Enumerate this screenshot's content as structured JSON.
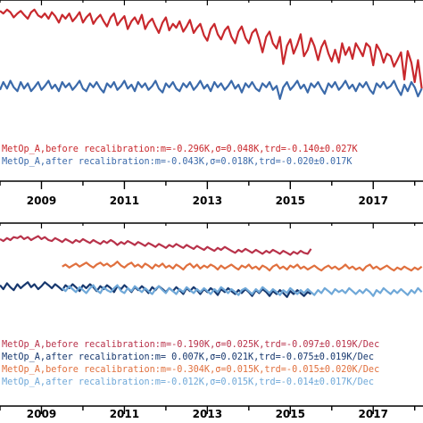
{
  "chart_data": [
    {
      "type": "line",
      "title": "",
      "xlabel": "",
      "ylabel": "",
      "xlim": [
        2008.0,
        2018.2
      ],
      "ylim": [
        -1.0,
        1.0
      ],
      "x_ticks": [
        "2009",
        "2011",
        "2013",
        "2015",
        "2017"
      ],
      "x": [
        2008.0,
        2008.08,
        2008.17,
        2008.25,
        2008.33,
        2008.42,
        2008.5,
        2008.58,
        2008.67,
        2008.75,
        2008.83,
        2008.92,
        2009.0,
        2009.08,
        2009.17,
        2009.25,
        2009.33,
        2009.42,
        2009.5,
        2009.58,
        2009.67,
        2009.75,
        2009.83,
        2009.92,
        2010.0,
        2010.08,
        2010.17,
        2010.25,
        2010.33,
        2010.42,
        2010.5,
        2010.58,
        2010.67,
        2010.75,
        2010.83,
        2010.92,
        2011.0,
        2011.08,
        2011.17,
        2011.25,
        2011.33,
        2011.42,
        2011.5,
        2011.58,
        2011.67,
        2011.75,
        2011.83,
        2011.92,
        2012.0,
        2012.08,
        2012.17,
        2012.25,
        2012.33,
        2012.42,
        2012.5,
        2012.58,
        2012.67,
        2012.75,
        2012.83,
        2012.92,
        2013.0,
        2013.08,
        2013.17,
        2013.25,
        2013.33,
        2013.42,
        2013.5,
        2013.58,
        2013.67,
        2013.75,
        2013.83,
        2013.92,
        2014.0,
        2014.08,
        2014.17,
        2014.25,
        2014.33,
        2014.42,
        2014.5,
        2014.58,
        2014.67,
        2014.75,
        2014.83,
        2014.92,
        2015.0,
        2015.08,
        2015.17,
        2015.25,
        2015.33,
        2015.42,
        2015.5,
        2015.58,
        2015.67,
        2015.75,
        2015.83,
        2015.92,
        2016.0,
        2016.08,
        2016.17,
        2016.25,
        2016.33,
        2016.42,
        2016.5,
        2016.58,
        2016.67,
        2016.75,
        2016.83,
        2016.92,
        2017.0,
        2017.08,
        2017.17,
        2017.25,
        2017.33,
        2017.42,
        2017.5,
        2017.58,
        2017.67,
        2017.75,
        2017.83,
        2017.92,
        2018.0,
        2018.08,
        2018.17
      ],
      "series": [
        {
          "name": "MetOp_A,before recalibration:m=-0.296K,σ=0.048K,trd=-0.140±0.027K",
          "color": "#c8282d",
          "values": [
            0.9,
            0.86,
            0.92,
            0.88,
            0.8,
            0.86,
            0.9,
            0.84,
            0.78,
            0.88,
            0.92,
            0.83,
            0.8,
            0.86,
            0.78,
            0.88,
            0.82,
            0.72,
            0.84,
            0.78,
            0.86,
            0.74,
            0.8,
            0.88,
            0.72,
            0.8,
            0.86,
            0.7,
            0.78,
            0.84,
            0.74,
            0.66,
            0.8,
            0.86,
            0.68,
            0.76,
            0.82,
            0.62,
            0.74,
            0.8,
            0.7,
            0.84,
            0.62,
            0.72,
            0.78,
            0.66,
            0.56,
            0.72,
            0.8,
            0.6,
            0.7,
            0.64,
            0.74,
            0.58,
            0.66,
            0.76,
            0.56,
            0.64,
            0.7,
            0.52,
            0.44,
            0.62,
            0.7,
            0.54,
            0.46,
            0.6,
            0.66,
            0.5,
            0.4,
            0.58,
            0.66,
            0.48,
            0.4,
            0.56,
            0.62,
            0.46,
            0.26,
            0.5,
            0.58,
            0.4,
            0.32,
            0.5,
            0.08,
            0.36,
            0.46,
            0.24,
            0.38,
            0.54,
            0.2,
            0.3,
            0.48,
            0.36,
            0.14,
            0.34,
            0.44,
            0.24,
            0.12,
            0.3,
            0.1,
            0.4,
            0.22,
            0.34,
            0.16,
            0.4,
            0.3,
            0.2,
            0.4,
            0.34,
            0.06,
            0.38,
            0.28,
            0.1,
            0.24,
            0.2,
            0.04,
            0.14,
            0.26,
            -0.16,
            0.28,
            0.1,
            -0.2,
            0.14,
            -0.3
          ]
        },
        {
          "name": "MetOp_A,after  recalibration:m=-0.043K,σ=0.018K,trd=-0.020±0.017K",
          "color": "#3b6aaa",
          "values": [
            -0.32,
            -0.2,
            -0.3,
            -0.18,
            -0.28,
            -0.34,
            -0.2,
            -0.3,
            -0.22,
            -0.34,
            -0.28,
            -0.2,
            -0.32,
            -0.26,
            -0.18,
            -0.3,
            -0.24,
            -0.34,
            -0.2,
            -0.28,
            -0.22,
            -0.32,
            -0.26,
            -0.18,
            -0.3,
            -0.34,
            -0.22,
            -0.28,
            -0.2,
            -0.3,
            -0.36,
            -0.22,
            -0.28,
            -0.2,
            -0.32,
            -0.26,
            -0.18,
            -0.3,
            -0.24,
            -0.34,
            -0.2,
            -0.28,
            -0.22,
            -0.32,
            -0.26,
            -0.18,
            -0.3,
            -0.36,
            -0.22,
            -0.28,
            -0.2,
            -0.3,
            -0.34,
            -0.22,
            -0.28,
            -0.2,
            -0.32,
            -0.26,
            -0.18,
            -0.3,
            -0.24,
            -0.34,
            -0.2,
            -0.28,
            -0.22,
            -0.32,
            -0.26,
            -0.18,
            -0.3,
            -0.24,
            -0.36,
            -0.22,
            -0.28,
            -0.2,
            -0.3,
            -0.34,
            -0.22,
            -0.28,
            -0.2,
            -0.32,
            -0.26,
            -0.46,
            -0.28,
            -0.2,
            -0.32,
            -0.26,
            -0.18,
            -0.3,
            -0.24,
            -0.36,
            -0.22,
            -0.28,
            -0.2,
            -0.3,
            -0.38,
            -0.22,
            -0.28,
            -0.2,
            -0.32,
            -0.26,
            -0.18,
            -0.3,
            -0.24,
            -0.34,
            -0.22,
            -0.28,
            -0.2,
            -0.32,
            -0.38,
            -0.22,
            -0.28,
            -0.2,
            -0.3,
            -0.26,
            -0.18,
            -0.3,
            -0.4,
            -0.24,
            -0.34,
            -0.2,
            -0.28,
            -0.42,
            -0.3
          ]
        }
      ]
    },
    {
      "type": "line",
      "title": "",
      "xlabel": "",
      "ylabel": "",
      "xlim": [
        2008.0,
        2018.2
      ],
      "ylim": [
        -1.0,
        1.0
      ],
      "x_ticks": [
        "2009",
        "2011",
        "2013",
        "2015",
        "2017"
      ],
      "x": [
        2008.0,
        2008.08,
        2008.17,
        2008.25,
        2008.33,
        2008.42,
        2008.5,
        2008.58,
        2008.67,
        2008.75,
        2008.83,
        2008.92,
        2009.0,
        2009.08,
        2009.17,
        2009.25,
        2009.33,
        2009.42,
        2009.5,
        2009.58,
        2009.67,
        2009.75,
        2009.83,
        2009.92,
        2010.0,
        2010.08,
        2010.17,
        2010.25,
        2010.33,
        2010.42,
        2010.5,
        2010.58,
        2010.67,
        2010.75,
        2010.83,
        2010.92,
        2011.0,
        2011.08,
        2011.17,
        2011.25,
        2011.33,
        2011.42,
        2011.5,
        2011.58,
        2011.67,
        2011.75,
        2011.83,
        2011.92,
        2012.0,
        2012.08,
        2012.17,
        2012.25,
        2012.33,
        2012.42,
        2012.5,
        2012.58,
        2012.67,
        2012.75,
        2012.83,
        2012.92,
        2013.0,
        2013.08,
        2013.17,
        2013.25,
        2013.33,
        2013.42,
        2013.5,
        2013.58,
        2013.67,
        2013.75,
        2013.83,
        2013.92,
        2014.0,
        2014.08,
        2014.17,
        2014.25,
        2014.33,
        2014.42,
        2014.5,
        2014.58,
        2014.67,
        2014.75,
        2014.83,
        2014.92,
        2015.0,
        2015.08,
        2015.17,
        2015.25,
        2015.33,
        2015.42,
        2015.5,
        2015.58,
        2015.67,
        2015.75,
        2015.83,
        2015.92,
        2016.0,
        2016.08,
        2016.17,
        2016.25,
        2016.33,
        2016.42,
        2016.5,
        2016.58,
        2016.67,
        2016.75,
        2016.83,
        2016.92,
        2017.0,
        2017.08,
        2017.17,
        2017.25,
        2017.33,
        2017.42,
        2017.5,
        2017.58,
        2017.67,
        2017.75,
        2017.83,
        2017.92,
        2018.0,
        2018.08,
        2018.17
      ],
      "series": [
        {
          "name": "MetOp_A,before recalibration:m=-0.190K,σ=0.025K,trd=-0.097±0.019K/Dec",
          "color": "#b8324a",
          "values": [
            0.82,
            0.78,
            0.84,
            0.8,
            0.86,
            0.84,
            0.88,
            0.82,
            0.86,
            0.8,
            0.84,
            0.88,
            0.82,
            0.86,
            0.8,
            0.78,
            0.84,
            0.8,
            0.76,
            0.82,
            0.78,
            0.74,
            0.8,
            0.76,
            0.82,
            0.78,
            0.74,
            0.8,
            0.76,
            0.72,
            0.78,
            0.74,
            0.8,
            0.76,
            0.7,
            0.76,
            0.72,
            0.78,
            0.74,
            0.7,
            0.76,
            0.72,
            0.68,
            0.74,
            0.7,
            0.66,
            0.72,
            0.68,
            0.64,
            0.7,
            0.66,
            0.72,
            0.68,
            0.64,
            0.7,
            0.66,
            0.62,
            0.68,
            0.64,
            0.6,
            0.66,
            0.62,
            0.58,
            0.64,
            0.6,
            0.66,
            0.62,
            0.58,
            0.54,
            0.6,
            0.56,
            0.62,
            0.58,
            0.54,
            0.6,
            0.56,
            0.52,
            0.58,
            0.54,
            0.6,
            0.56,
            0.52,
            0.58,
            0.54,
            0.5,
            0.56,
            0.52,
            0.58,
            0.54,
            0.52,
            0.62,
            null,
            null,
            null,
            null,
            null,
            null,
            null,
            null,
            null,
            null,
            null,
            null,
            null,
            null,
            null,
            null,
            null,
            null,
            null,
            null,
            null,
            null,
            null,
            null,
            null,
            null,
            null,
            null,
            null,
            null,
            null,
            null
          ]
        },
        {
          "name": "MetOp_A,after  recalibration:m= 0.007K,σ=0.021K,trd=-0.075±0.019K/Dec",
          "color": "#17386e",
          "values": [
            -0.12,
            -0.2,
            -0.08,
            -0.16,
            -0.22,
            -0.1,
            -0.18,
            -0.12,
            -0.06,
            -0.16,
            -0.1,
            -0.2,
            -0.14,
            -0.06,
            -0.12,
            -0.18,
            -0.1,
            -0.16,
            -0.22,
            -0.12,
            -0.18,
            -0.1,
            -0.16,
            -0.24,
            -0.12,
            -0.18,
            -0.1,
            -0.16,
            -0.24,
            -0.14,
            -0.2,
            -0.12,
            -0.18,
            -0.26,
            -0.14,
            -0.2,
            -0.12,
            -0.18,
            -0.26,
            -0.16,
            -0.22,
            -0.14,
            -0.2,
            -0.28,
            -0.16,
            -0.22,
            -0.14,
            -0.2,
            -0.26,
            -0.18,
            -0.24,
            -0.16,
            -0.22,
            -0.3,
            -0.18,
            -0.24,
            -0.16,
            -0.22,
            -0.3,
            -0.2,
            -0.26,
            -0.18,
            -0.24,
            -0.32,
            -0.2,
            -0.26,
            -0.18,
            -0.24,
            -0.3,
            -0.22,
            -0.28,
            -0.2,
            -0.26,
            -0.34,
            -0.22,
            -0.28,
            -0.2,
            -0.26,
            -0.34,
            -0.24,
            -0.3,
            -0.22,
            -0.28,
            -0.36,
            -0.24,
            -0.3,
            -0.22,
            -0.28,
            -0.34,
            -0.26,
            -0.3,
            null,
            null,
            null,
            null,
            null,
            null,
            null,
            null,
            null,
            null,
            null,
            null,
            null,
            null,
            null,
            null,
            null,
            null,
            null,
            null,
            null,
            null,
            null,
            null,
            null,
            null,
            null,
            null,
            null,
            null,
            null,
            null
          ]
        },
        {
          "name": "MetOp_A,before recalibration:m=-0.304K,σ=0.015K,trd=-0.015±0.020K/Dec",
          "color": "#e0703e",
          "values": [
            null,
            null,
            null,
            null,
            null,
            null,
            null,
            null,
            null,
            null,
            null,
            null,
            null,
            null,
            null,
            null,
            null,
            null,
            0.26,
            0.3,
            0.24,
            0.28,
            0.32,
            0.26,
            0.3,
            0.34,
            0.28,
            0.24,
            0.3,
            0.34,
            0.28,
            0.32,
            0.26,
            0.3,
            0.36,
            0.28,
            0.24,
            0.3,
            0.34,
            0.26,
            0.3,
            0.24,
            0.32,
            0.28,
            0.22,
            0.3,
            0.26,
            0.32,
            0.24,
            0.28,
            0.22,
            0.3,
            0.26,
            0.2,
            0.28,
            0.32,
            0.24,
            0.3,
            0.22,
            0.28,
            0.24,
            0.3,
            0.26,
            0.2,
            0.28,
            0.22,
            0.26,
            0.3,
            0.24,
            0.2,
            0.28,
            0.24,
            0.3,
            0.22,
            0.26,
            0.2,
            0.28,
            0.24,
            0.18,
            0.26,
            0.3,
            0.22,
            0.26,
            0.2,
            0.28,
            0.24,
            0.3,
            0.22,
            0.26,
            0.2,
            0.24,
            0.28,
            0.22,
            0.18,
            0.24,
            0.28,
            0.22,
            0.26,
            0.2,
            0.24,
            0.3,
            0.22,
            0.26,
            0.2,
            0.24,
            0.18,
            0.26,
            0.3,
            0.22,
            0.26,
            0.2,
            0.24,
            0.28,
            0.22,
            0.18,
            0.24,
            0.2,
            0.26,
            0.22,
            0.18,
            0.24,
            0.2,
            0.26
          ]
        },
        {
          "name": "MetOp_A,after  recalibration:m=-0.012K,σ=0.015K,trd=-0.014±0.017K/Dec",
          "color": "#6fa8d8",
          "values": [
            null,
            null,
            null,
            null,
            null,
            null,
            null,
            null,
            null,
            null,
            null,
            null,
            null,
            null,
            null,
            null,
            null,
            null,
            -0.18,
            -0.24,
            -0.14,
            -0.2,
            -0.26,
            -0.16,
            -0.22,
            -0.28,
            -0.18,
            -0.12,
            -0.22,
            -0.28,
            -0.16,
            -0.22,
            -0.26,
            -0.18,
            -0.12,
            -0.24,
            -0.28,
            -0.18,
            -0.24,
            -0.14,
            -0.2,
            -0.26,
            -0.18,
            -0.24,
            -0.3,
            -0.2,
            -0.14,
            -0.22,
            -0.28,
            -0.18,
            -0.24,
            -0.3,
            -0.2,
            -0.26,
            -0.16,
            -0.22,
            -0.28,
            -0.2,
            -0.26,
            -0.18,
            -0.24,
            -0.3,
            -0.2,
            -0.26,
            -0.16,
            -0.22,
            -0.28,
            -0.2,
            -0.26,
            -0.32,
            -0.22,
            -0.18,
            -0.24,
            -0.3,
            -0.2,
            -0.26,
            -0.16,
            -0.22,
            -0.28,
            -0.2,
            -0.26,
            -0.32,
            -0.22,
            -0.28,
            -0.18,
            -0.24,
            -0.3,
            -0.22,
            -0.28,
            -0.2,
            -0.26,
            -0.32,
            -0.22,
            -0.28,
            -0.18,
            -0.24,
            -0.3,
            -0.2,
            -0.26,
            -0.22,
            -0.28,
            -0.18,
            -0.24,
            -0.3,
            -0.22,
            -0.28,
            -0.2,
            -0.26,
            -0.34,
            -0.22,
            -0.28,
            -0.18,
            -0.24,
            -0.3,
            -0.22,
            -0.28,
            -0.2,
            -0.26,
            -0.32,
            -0.22,
            -0.28,
            -0.18,
            -0.26
          ]
        }
      ]
    }
  ]
}
